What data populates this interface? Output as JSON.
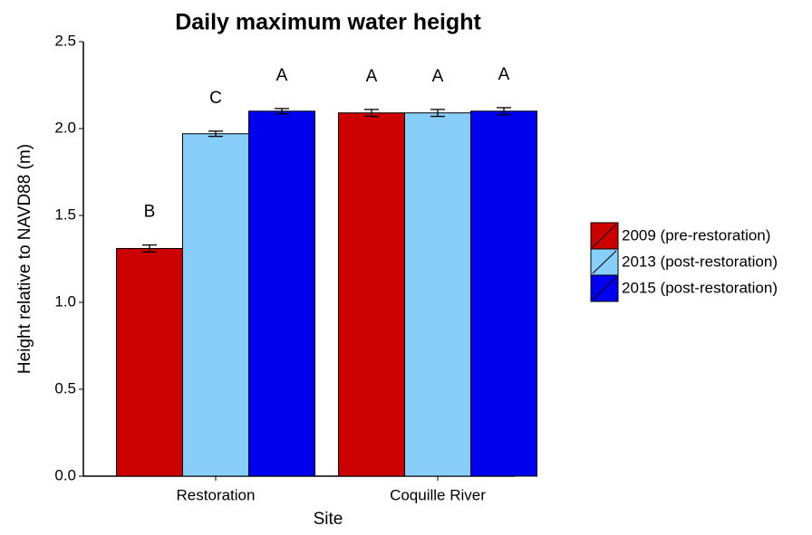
{
  "chart_data": {
    "type": "bar",
    "title": "Daily maximum water height",
    "x_label": "Site",
    "y_label": "Height relative to NAVD88 (m)",
    "categories": [
      "Restoration",
      "Coquille River"
    ],
    "series": [
      {
        "name": "2009 (pre-restoration)",
        "color": "#cc0000",
        "values": [
          1.31,
          2.09
        ],
        "errors": [
          0.02,
          0.02
        ],
        "letters": [
          "B",
          "A"
        ]
      },
      {
        "name": "2013 (post-restoration)",
        "color": "#87cefa",
        "values": [
          1.97,
          2.09
        ],
        "errors": [
          0.015,
          0.02
        ],
        "letters": [
          "C",
          "A"
        ]
      },
      {
        "name": "2015 (post-restoration)",
        "color": "#0000ee",
        "values": [
          2.1,
          2.1
        ],
        "errors": [
          0.015,
          0.02
        ],
        "letters": [
          "A",
          "A"
        ]
      }
    ],
    "ylim": [
      0,
      2.5
    ],
    "yticks": [
      {
        "value": 0,
        "label": "0.0"
      },
      {
        "value": 0.5,
        "label": "0.5"
      },
      {
        "value": 1,
        "label": "1.0"
      },
      {
        "value": 1.5,
        "label": "1.5"
      },
      {
        "value": 2,
        "label": "2.0"
      },
      {
        "value": 2.5,
        "label": "2.5"
      }
    ],
    "grid": false,
    "legend": "right"
  }
}
